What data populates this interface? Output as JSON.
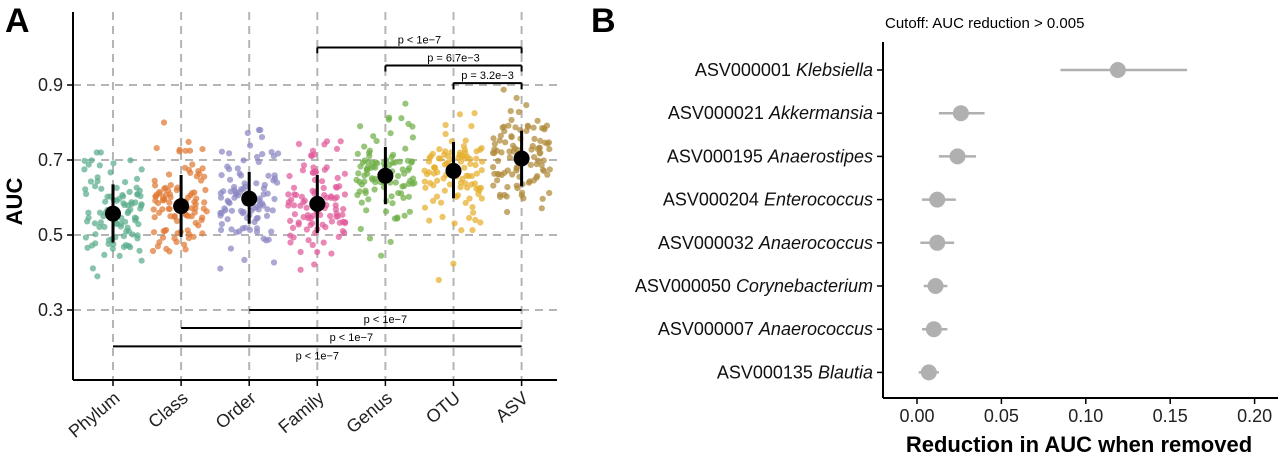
{
  "chart_data": [
    {
      "panel": "A",
      "type": "scatter",
      "ylabel": "AUC",
      "ylim": [
        0.25,
        1.0
      ],
      "yticks": [
        "0.3",
        "0.5",
        "0.7",
        "0.9"
      ],
      "grid": true,
      "categories": [
        "Phylum",
        "Class",
        "Order",
        "Family",
        "Genus",
        "OTU",
        "ASV"
      ],
      "colors": [
        "#5aad8c",
        "#e07a35",
        "#8b86c4",
        "#e05a9a",
        "#6fae45",
        "#e6ae2c",
        "#b08a3a"
      ],
      "series": [
        {
          "means": [
            0.557,
            0.577,
            0.597,
            0.583,
            0.658,
            0.671,
            0.704
          ],
          "lower": [
            0.48,
            0.495,
            0.53,
            0.505,
            0.582,
            0.598,
            0.63
          ],
          "upper": [
            0.635,
            0.66,
            0.668,
            0.66,
            0.735,
            0.748,
            0.778
          ]
        }
      ],
      "ranges": [
        [
          0.39,
          0.72
        ],
        [
          0.36,
          0.8
        ],
        [
          0.36,
          0.78
        ],
        [
          0.33,
          0.75
        ],
        [
          0.43,
          0.85
        ],
        [
          0.38,
          0.83
        ],
        [
          0.52,
          0.9
        ]
      ],
      "comparisons_top": [
        {
          "from": "Family",
          "to": "ASV",
          "y": 1.0,
          "label": "p < 1e−7"
        },
        {
          "from": "Genus",
          "to": "ASV",
          "y": 0.952,
          "label": "p = 6.7e−3"
        },
        {
          "from": "OTU",
          "to": "ASV",
          "y": 0.905,
          "label": "p = 3.2e−3"
        }
      ],
      "comparisons_bottom": [
        {
          "from": "Order",
          "to": "ASV",
          "y": 0.3,
          "label": "p < 1e−7"
        },
        {
          "from": "Class",
          "to": "ASV",
          "y": 0.252,
          "label": "p < 1e−7"
        },
        {
          "from": "Phylum",
          "to": "ASV",
          "y": 0.203,
          "label": "p < 1e−7"
        }
      ]
    },
    {
      "panel": "B",
      "type": "scatter",
      "title": "Cutoff: AUC reduction > 0.005",
      "xlabel": "Reduction in AUC when removed",
      "xlim": [
        -0.02,
        0.205
      ],
      "xticks": [
        "0.00",
        "0.05",
        "0.10",
        "0.15",
        "0.20"
      ],
      "point_color": "#b0b0b0",
      "rows": [
        {
          "id": "ASV000001",
          "taxon": "Klebsiella",
          "value": 0.119,
          "low": 0.085,
          "high": 0.16
        },
        {
          "id": "ASV000021",
          "taxon": "Akkermansia",
          "value": 0.026,
          "low": 0.013,
          "high": 0.04
        },
        {
          "id": "ASV000195",
          "taxon": "Anaerostipes",
          "value": 0.024,
          "low": 0.013,
          "high": 0.035
        },
        {
          "id": "ASV000204",
          "taxon": "Enterococcus",
          "value": 0.012,
          "low": 0.003,
          "high": 0.023
        },
        {
          "id": "ASV000032",
          "taxon": "Anaerococcus",
          "value": 0.012,
          "low": 0.002,
          "high": 0.022
        },
        {
          "id": "ASV000050",
          "taxon": "Corynebacterium",
          "value": 0.011,
          "low": 0.004,
          "high": 0.018
        },
        {
          "id": "ASV000007",
          "taxon": "Anaerococcus",
          "value": 0.01,
          "low": 0.003,
          "high": 0.018
        },
        {
          "id": "ASV000135",
          "taxon": "Blautia",
          "value": 0.007,
          "low": 0.001,
          "high": 0.013
        }
      ]
    }
  ]
}
